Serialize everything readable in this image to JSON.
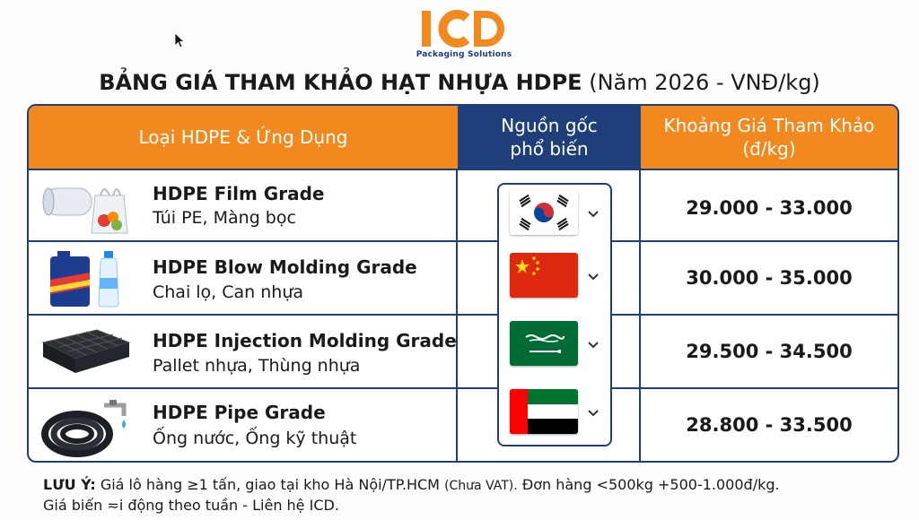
{
  "logo": {
    "text": "ICD",
    "subtitle": "Packaging Solutions",
    "colors": {
      "orange": "#f2891f",
      "navy": "#1f3f7a"
    }
  },
  "title": {
    "bold": "BẢNG GIÁ THAM KHẢO HẠT NHỰA HDPE",
    "suffix": "(Năm 2026 - VNĐ/kg)"
  },
  "table": {
    "headers": {
      "type": "Loại HDPE & Ứng Dụng",
      "origin_line1": "Nguồn gốc",
      "origin_line2": "phổ biến",
      "price_line1": "Khoảng Giá Tham Khảo",
      "price_line2": "(đ/kg)"
    },
    "rows": [
      {
        "name": "HDPE Film Grade",
        "use": "Túi PE, Màng bọc",
        "price": "29.000 - 33.000",
        "image_icon": "plastic-film-bag-icon",
        "flag": "south-korea-flag-icon"
      },
      {
        "name": "HDPE Blow Molding Grade",
        "use": "Chai lọ, Can nhựa",
        "price": "30.000 - 35.000",
        "image_icon": "bottle-can-icon",
        "flag": "china-flag-icon"
      },
      {
        "name": "HDPE Injection Molding Grade",
        "use": "Pallet nhựa, Thùng nhựa",
        "price": "29.500 - 34.500",
        "image_icon": "plastic-pallet-icon",
        "flag": "saudi-arabia-flag-icon"
      },
      {
        "name": "HDPE Pipe Grade",
        "use": "Ống nước, Ống kỹ thuật",
        "price": "28.800 - 33.500",
        "image_icon": "pipe-coil-icon",
        "flag": "uae-flag-icon"
      }
    ]
  },
  "note": {
    "label": "LƯU Ý:",
    "line1_a": "Giá lô hàng ≥1 tấn, giao tại kho Hà Nội/TP.HCM",
    "line1_small": "(Chưa VAT).",
    "line1_b": "Đơn hàng <500kg +500-1.000đ/kg.",
    "line2": "Giá biến ≂i động theo tuần - Liên hệ ICD."
  }
}
